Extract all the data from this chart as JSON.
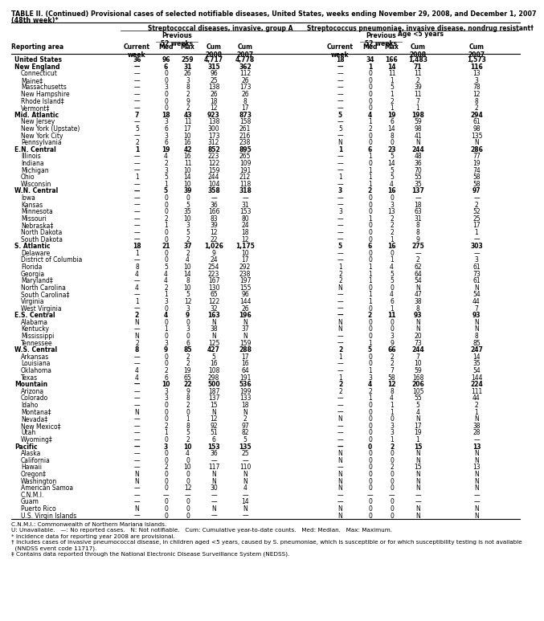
{
  "title_line1": "TABLE II. (Continued) Provisional cases of selected notifiable diseases, United States, weeks ending November 29, 2008, and December 1, 2007",
  "title_line2": "(48th week)*",
  "col_group1": "Streptococcal diseases, invasive, group A",
  "col_group2": "Streptococcus pneumoniae, invasive disease, nondrug resistant†",
  "col_group2_sub": "Age <5 years",
  "rows": [
    [
      "United States",
      "36",
      "96",
      "259",
      "4,717",
      "4,778",
      "18",
      "34",
      "166",
      "1,483",
      "1,573"
    ],
    [
      "New England",
      "—",
      "6",
      "31",
      "315",
      "362",
      "—",
      "1",
      "14",
      "71",
      "116"
    ],
    [
      "Connecticut",
      "—",
      "0",
      "26",
      "96",
      "112",
      "—",
      "0",
      "11",
      "11",
      "13"
    ],
    [
      "Maine‡",
      "—",
      "0",
      "3",
      "25",
      "26",
      "—",
      "0",
      "1",
      "2",
      "3"
    ],
    [
      "Massachusetts",
      "—",
      "3",
      "8",
      "138",
      "173",
      "—",
      "0",
      "5",
      "39",
      "78"
    ],
    [
      "New Hampshire",
      "—",
      "0",
      "2",
      "26",
      "26",
      "—",
      "0",
      "1",
      "11",
      "12"
    ],
    [
      "Rhode Island‡",
      "—",
      "0",
      "9",
      "18",
      "8",
      "—",
      "0",
      "2",
      "7",
      "8"
    ],
    [
      "Vermont‡",
      "—",
      "0",
      "2",
      "12",
      "17",
      "—",
      "0",
      "1",
      "1",
      "2"
    ],
    [
      "Mid. Atlantic",
      "7",
      "18",
      "43",
      "923",
      "873",
      "5",
      "4",
      "19",
      "198",
      "294"
    ],
    [
      "New Jersey",
      "—",
      "3",
      "11",
      "138",
      "158",
      "—",
      "1",
      "6",
      "59",
      "61"
    ],
    [
      "New York (Upstate)",
      "5",
      "6",
      "17",
      "300",
      "261",
      "5",
      "2",
      "14",
      "98",
      "98"
    ],
    [
      "New York City",
      "—",
      "3",
      "10",
      "173",
      "216",
      "—",
      "0",
      "8",
      "41",
      "135"
    ],
    [
      "Pennsylvania",
      "2",
      "6",
      "16",
      "312",
      "238",
      "N",
      "0",
      "0",
      "N",
      "N"
    ],
    [
      "E.N. Central",
      "1",
      "19",
      "42",
      "852",
      "895",
      "1",
      "6",
      "23",
      "244",
      "286"
    ],
    [
      "Illinois",
      "—",
      "4",
      "16",
      "223",
      "265",
      "—",
      "1",
      "5",
      "48",
      "77"
    ],
    [
      "Indiana",
      "—",
      "2",
      "11",
      "122",
      "109",
      "—",
      "0",
      "14",
      "36",
      "19"
    ],
    [
      "Michigan",
      "—",
      "3",
      "10",
      "159",
      "191",
      "—",
      "1",
      "5",
      "70",
      "74"
    ],
    [
      "Ohio",
      "1",
      "5",
      "14",
      "244",
      "212",
      "1",
      "1",
      "5",
      "55",
      "58"
    ],
    [
      "Wisconsin",
      "—",
      "1",
      "10",
      "104",
      "118",
      "—",
      "1",
      "4",
      "35",
      "58"
    ],
    [
      "W.N. Central",
      "—",
      "5",
      "39",
      "358",
      "318",
      "3",
      "2",
      "16",
      "137",
      "97"
    ],
    [
      "Iowa",
      "—",
      "0",
      "0",
      "—",
      "—",
      "—",
      "0",
      "0",
      "—",
      "—"
    ],
    [
      "Kansas",
      "—",
      "0",
      "5",
      "36",
      "31",
      "—",
      "0",
      "3",
      "18",
      "2"
    ],
    [
      "Minnesota",
      "—",
      "0",
      "35",
      "166",
      "153",
      "3",
      "0",
      "13",
      "63",
      "52"
    ],
    [
      "Missouri",
      "—",
      "2",
      "10",
      "83",
      "80",
      "—",
      "1",
      "2",
      "31",
      "25"
    ],
    [
      "Nebraska‡",
      "—",
      "1",
      "3",
      "39",
      "24",
      "—",
      "0",
      "2",
      "8",
      "17"
    ],
    [
      "North Dakota",
      "—",
      "0",
      "5",
      "12",
      "18",
      "—",
      "0",
      "2",
      "8",
      "1"
    ],
    [
      "South Dakota",
      "—",
      "0",
      "2",
      "22",
      "12",
      "—",
      "0",
      "1",
      "9",
      "—"
    ],
    [
      "S. Atlantic",
      "18",
      "21",
      "37",
      "1,026",
      "1,175",
      "5",
      "6",
      "16",
      "275",
      "303"
    ],
    [
      "Delaware",
      "1",
      "0",
      "2",
      "9",
      "10",
      "—",
      "0",
      "0",
      "—",
      "—"
    ],
    [
      "District of Columbia",
      "—",
      "0",
      "4",
      "24",
      "17",
      "—",
      "0",
      "1",
      "2",
      "3"
    ],
    [
      "Florida",
      "8",
      "5",
      "10",
      "254",
      "292",
      "1",
      "1",
      "4",
      "62",
      "61"
    ],
    [
      "Georgia",
      "4",
      "4",
      "14",
      "223",
      "238",
      "2",
      "1",
      "5",
      "64",
      "73"
    ],
    [
      "Maryland‡",
      "—",
      "4",
      "8",
      "167",
      "197",
      "2",
      "1",
      "5",
      "54",
      "61"
    ],
    [
      "North Carolina",
      "4",
      "2",
      "10",
      "130",
      "155",
      "N",
      "0",
      "0",
      "N",
      "N"
    ],
    [
      "South Carolina‡",
      "—",
      "1",
      "5",
      "65",
      "96",
      "—",
      "1",
      "4",
      "47",
      "54"
    ],
    [
      "Virginia",
      "1",
      "3",
      "12",
      "122",
      "144",
      "—",
      "1",
      "6",
      "38",
      "44"
    ],
    [
      "West Virginia",
      "—",
      "0",
      "3",
      "32",
      "26",
      "—",
      "0",
      "1",
      "8",
      "7"
    ],
    [
      "E.S. Central",
      "2",
      "4",
      "9",
      "163",
      "196",
      "—",
      "2",
      "11",
      "93",
      "93"
    ],
    [
      "Alabama",
      "N",
      "0",
      "0",
      "N",
      "N",
      "N",
      "0",
      "0",
      "N",
      "N"
    ],
    [
      "Kentucky",
      "—",
      "1",
      "3",
      "38",
      "37",
      "N",
      "0",
      "0",
      "N",
      "N"
    ],
    [
      "Mississippi",
      "N",
      "0",
      "0",
      "N",
      "N",
      "—",
      "0",
      "3",
      "20",
      "8"
    ],
    [
      "Tennessee",
      "2",
      "3",
      "6",
      "125",
      "159",
      "—",
      "1",
      "9",
      "73",
      "85"
    ],
    [
      "W.S. Central",
      "8",
      "9",
      "85",
      "427",
      "288",
      "2",
      "5",
      "66",
      "244",
      "247"
    ],
    [
      "Arkansas",
      "—",
      "0",
      "2",
      "5",
      "17",
      "1",
      "0",
      "2",
      "7",
      "14"
    ],
    [
      "Louisiana",
      "—",
      "0",
      "2",
      "16",
      "16",
      "—",
      "0",
      "2",
      "10",
      "35"
    ],
    [
      "Oklahoma",
      "4",
      "2",
      "19",
      "108",
      "64",
      "—",
      "1",
      "7",
      "59",
      "54"
    ],
    [
      "Texas",
      "4",
      "6",
      "65",
      "298",
      "191",
      "1",
      "3",
      "58",
      "168",
      "144"
    ],
    [
      "Mountain",
      "—",
      "10",
      "22",
      "500",
      "536",
      "2",
      "4",
      "12",
      "206",
      "224"
    ],
    [
      "Arizona",
      "—",
      "3",
      "9",
      "187",
      "199",
      "2",
      "2",
      "8",
      "105",
      "111"
    ],
    [
      "Colorado",
      "—",
      "3",
      "8",
      "137",
      "133",
      "—",
      "1",
      "4",
      "55",
      "44"
    ],
    [
      "Idaho",
      "—",
      "0",
      "2",
      "15",
      "18",
      "—",
      "0",
      "1",
      "5",
      "2"
    ],
    [
      "Montana‡",
      "N",
      "0",
      "0",
      "N",
      "N",
      "—",
      "0",
      "1",
      "4",
      "1"
    ],
    [
      "Nevada‡",
      "—",
      "0",
      "1",
      "12",
      "2",
      "N",
      "0",
      "0",
      "N",
      "N"
    ],
    [
      "New Mexico‡",
      "—",
      "2",
      "8",
      "92",
      "97",
      "—",
      "0",
      "3",
      "17",
      "38"
    ],
    [
      "Utah",
      "—",
      "1",
      "5",
      "51",
      "82",
      "—",
      "0",
      "3",
      "19",
      "28"
    ],
    [
      "Wyoming‡",
      "—",
      "0",
      "2",
      "6",
      "5",
      "—",
      "0",
      "1",
      "1",
      "—"
    ],
    [
      "Pacific",
      "—",
      "3",
      "10",
      "153",
      "135",
      "—",
      "0",
      "2",
      "15",
      "13"
    ],
    [
      "Alaska",
      "—",
      "0",
      "4",
      "36",
      "25",
      "N",
      "0",
      "0",
      "N",
      "N"
    ],
    [
      "California",
      "—",
      "0",
      "0",
      "—",
      "—",
      "N",
      "0",
      "0",
      "N",
      "N"
    ],
    [
      "Hawaii",
      "—",
      "2",
      "10",
      "117",
      "110",
      "—",
      "0",
      "2",
      "15",
      "13"
    ],
    [
      "Oregon‡",
      "N",
      "0",
      "0",
      "N",
      "N",
      "N",
      "0",
      "0",
      "N",
      "N"
    ],
    [
      "Washington",
      "N",
      "0",
      "0",
      "N",
      "N",
      "N",
      "0",
      "0",
      "N",
      "N"
    ],
    [
      "American Samoa",
      "—",
      "0",
      "12",
      "30",
      "4",
      "N",
      "0",
      "0",
      "N",
      "N"
    ],
    [
      "C.N.M.I.",
      "—",
      "—",
      "—",
      "—",
      "—",
      "—",
      "—",
      "—",
      "—",
      "—"
    ],
    [
      "Guam",
      "—",
      "0",
      "0",
      "—",
      "14",
      "—",
      "0",
      "0",
      "—",
      "—"
    ],
    [
      "Puerto Rico",
      "N",
      "0",
      "0",
      "N",
      "N",
      "N",
      "0",
      "0",
      "N",
      "N"
    ],
    [
      "U.S. Virgin Islands",
      "—",
      "0",
      "0",
      "—",
      "—",
      "N",
      "0",
      "0",
      "N",
      "N"
    ]
  ],
  "section_rows": [
    0,
    1,
    8,
    13,
    19,
    27,
    37,
    42,
    47,
    56
  ],
  "footnotes": [
    "C.N.M.I.: Commonwealth of Northern Mariana Islands.",
    "U: Unavailable.   —: No reported cases.   N: Not notifiable.   Cum: Cumulative year-to-date counts.   Med: Median.   Max: Maximum.",
    "* Incidence data for reporting year 2008 are provisional.",
    "† Includes cases of invasive pneumococcal disease, in children aged <5 years, caused by S. pneumoniae, which is susceptible or for which susceptibility testing is not available",
    "  (NNDSS event code 11717).",
    "‡ Contains data reported through the National Electronic Disease Surveillance System (NEDSS)."
  ]
}
